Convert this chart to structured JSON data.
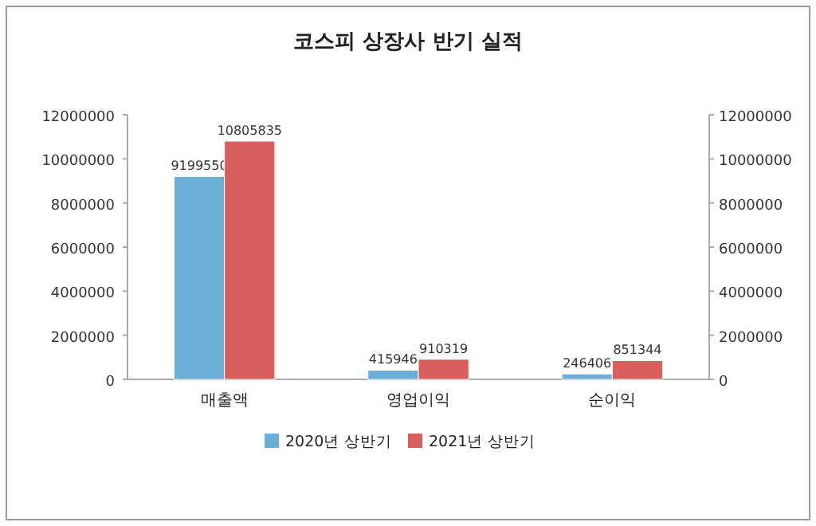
{
  "chart_data": {
    "type": "bar",
    "title": "코스피 상장사 반기 실적",
    "categories": [
      "매출액",
      "영업이익",
      "순이익"
    ],
    "series": [
      {
        "name": "2020년 상반기",
        "color": "#6baed6",
        "values": [
          9199550,
          415946,
          246406
        ]
      },
      {
        "name": "2021년 상반기",
        "color": "#d95f5f",
        "values": [
          10805835,
          910319,
          851344
        ]
      }
    ],
    "ylim": [
      0,
      12000000
    ],
    "yticks": [
      0,
      2000000,
      4000000,
      6000000,
      8000000,
      10000000,
      12000000
    ],
    "y2lim": [
      0,
      12000000
    ],
    "y2ticks": [
      0,
      2000000,
      4000000,
      6000000,
      8000000,
      10000000,
      12000000
    ],
    "data_labels": true,
    "legend": "bottom",
    "grid": false
  }
}
